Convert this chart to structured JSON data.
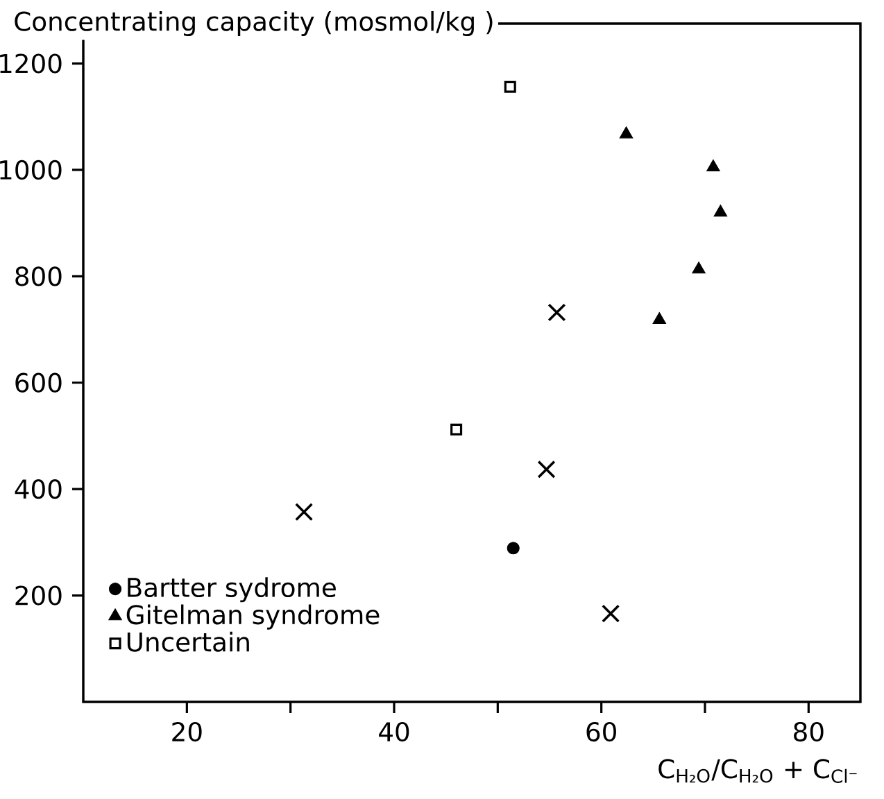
{
  "chart_data": {
    "type": "scatter",
    "ylabel": "Concentrating capacity (mosmol/kg )",
    "xlabel": "C$_{H₂O}$/C$_{H₂O}$ + C$_{Cl⁻}$",
    "xlim": [
      10,
      85
    ],
    "ylim": [
      0,
      1275
    ],
    "xticks": [
      20,
      {
        "value": 30,
        "label": null
      },
      40,
      {
        "value": 50,
        "label": null
      },
      60,
      {
        "value": 70,
        "label": null
      },
      80
    ],
    "yticks": [
      200,
      400,
      600,
      800,
      1000,
      1200
    ],
    "legend": "bottom left",
    "grid": false,
    "series": [
      {
        "name": "Bartter sydrome",
        "color": "#000000",
        "marker": "circle",
        "x": [
          51.5
        ],
        "values": [
          289
        ]
      },
      {
        "name": "Gitelman syndrome",
        "color": "#000000",
        "marker": "triangle",
        "x": [
          62.4,
          70.8,
          71.5,
          69.4,
          65.6
        ],
        "values": [
          1067,
          1005,
          920,
          813,
          718
        ]
      },
      {
        "name": "Uncertain",
        "color": "#000000",
        "marker": "square",
        "x": [
          51.2,
          46.0
        ],
        "values": [
          1156,
          512
        ]
      },
      {
        "color": "#000000",
        "marker": "cross",
        "x": [
          55.7,
          31.3,
          54.7,
          60.9
        ],
        "values": [
          732,
          357,
          437,
          166
        ]
      }
    ]
  }
}
